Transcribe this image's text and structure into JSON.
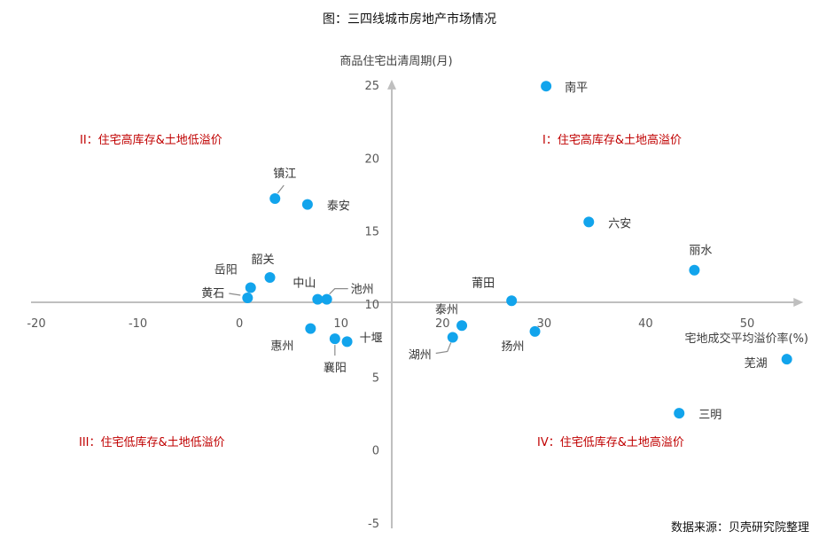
{
  "colors": {
    "point": "#12A4EC",
    "axis": "#BFBFBF",
    "leader": "#8C8C8C",
    "quadrant_label": "#C00000"
  },
  "chart_data": {
    "type": "scatter",
    "title": "图：三四线城市房地产市场情况",
    "xlabel": "宅地成交平均溢价率(%)",
    "ylabel": "商品住宅出清周期(月)",
    "source": "数据来源：贝壳研究院整理",
    "xlim": [
      -20,
      55
    ],
    "ylim": [
      -5,
      25
    ],
    "xticks": [
      -20,
      -10,
      0,
      10,
      20,
      30,
      40,
      50
    ],
    "yticks": [
      -5,
      0,
      5,
      10,
      15,
      20,
      25
    ],
    "x_axis_crosses_y_at": 10,
    "y_axis_crosses_x_at": 15,
    "grid": false,
    "legend": "none",
    "quadrant_labels": [
      "I：住宅高库存&土地高溢价",
      "II：住宅高库存&土地低溢价",
      "III：住宅低库存&土地低溢价",
      "IV：住宅低库存&土地高溢价"
    ],
    "points": [
      {
        "label": "南平",
        "x": 30.2,
        "y": 24.8
      },
      {
        "label": "六安",
        "x": 34.4,
        "y": 15.5
      },
      {
        "label": "丽水",
        "x": 44.8,
        "y": 12.2
      },
      {
        "label": "莆田",
        "x": 26.8,
        "y": 10.1
      },
      {
        "label": "扬州",
        "x": 29.1,
        "y": 8.0
      },
      {
        "label": "泰州",
        "x": 21.9,
        "y": 8.4
      },
      {
        "label": "湖州",
        "x": 21.0,
        "y": 7.6
      },
      {
        "label": "芜湖",
        "x": 53.9,
        "y": 6.1
      },
      {
        "label": "三明",
        "x": 43.3,
        "y": 2.4
      },
      {
        "label": "镇江",
        "x": 3.5,
        "y": 17.1
      },
      {
        "label": "泰安",
        "x": 6.7,
        "y": 16.7
      },
      {
        "label": "韶关",
        "x": 3.0,
        "y": 11.7
      },
      {
        "label": "岳阳",
        "x": 1.1,
        "y": 11.0
      },
      {
        "label": "黄石",
        "x": 0.8,
        "y": 10.3
      },
      {
        "label": "中山",
        "x": 7.7,
        "y": 10.2
      },
      {
        "label": "池州",
        "x": 8.6,
        "y": 10.2
      },
      {
        "label": "惠州",
        "x": 7.0,
        "y": 8.2
      },
      {
        "label": "襄阳",
        "x": 9.4,
        "y": 7.5
      },
      {
        "label": "十堰",
        "x": 10.6,
        "y": 7.3
      }
    ]
  }
}
